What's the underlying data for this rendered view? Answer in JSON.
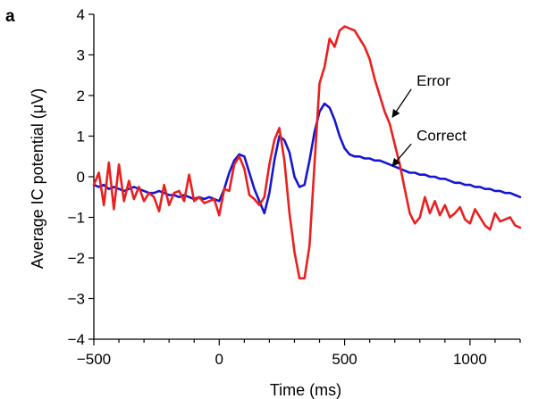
{
  "panel_label": "a",
  "chart_data": {
    "type": "line",
    "title": "",
    "xlabel": "Time (ms)",
    "ylabel": "Average IC potential (μV)",
    "xlim": [
      -500,
      1200
    ],
    "ylim": [
      -4,
      4
    ],
    "x_ticks": [
      -500,
      0,
      500,
      1000
    ],
    "x_tick_labels": [
      "−500",
      "0",
      "500",
      "1000"
    ],
    "y_ticks": [
      4,
      3,
      2,
      1,
      0,
      -1,
      -2,
      -3,
      -4
    ],
    "y_tick_labels": [
      "4",
      "3",
      "2",
      "1",
      "0",
      "−1",
      "−2",
      "−3",
      "−4"
    ],
    "grid": false,
    "legend": "none",
    "annotations": [
      {
        "text": "Error",
        "series": "error",
        "target": [
          680,
          1.4
        ],
        "label_at": [
          780,
          2.2
        ]
      },
      {
        "text": "Correct",
        "series": "correct",
        "target": [
          680,
          0.2
        ],
        "label_at": [
          780,
          0.85
        ]
      }
    ],
    "series": [
      {
        "id": "error",
        "color": "#e8201f",
        "x": [
          -500,
          -480,
          -460,
          -440,
          -420,
          -400,
          -380,
          -360,
          -340,
          -320,
          -300,
          -280,
          -260,
          -240,
          -220,
          -200,
          -180,
          -160,
          -140,
          -120,
          -100,
          -80,
          -60,
          -40,
          -20,
          0,
          20,
          40,
          60,
          80,
          100,
          120,
          140,
          160,
          180,
          200,
          220,
          240,
          260,
          280,
          300,
          320,
          340,
          360,
          380,
          400,
          420,
          440,
          460,
          480,
          500,
          520,
          540,
          560,
          580,
          600,
          620,
          640,
          660,
          680,
          700,
          720,
          740,
          760,
          780,
          800,
          820,
          840,
          860,
          880,
          900,
          920,
          940,
          960,
          980,
          1000,
          1020,
          1040,
          1060,
          1080,
          1100,
          1120,
          1140,
          1160,
          1180,
          1200
        ],
        "y": [
          -0.2,
          0.1,
          -0.7,
          0.35,
          -0.8,
          0.3,
          -0.6,
          -0.1,
          -0.55,
          -0.25,
          -0.6,
          -0.4,
          -0.5,
          -0.85,
          -0.2,
          -0.7,
          -0.4,
          -0.35,
          -0.6,
          0.05,
          -0.6,
          -0.5,
          -0.65,
          -0.6,
          -0.55,
          -0.95,
          -0.3,
          -0.35,
          0.3,
          0.5,
          0.2,
          -0.45,
          -0.55,
          -0.7,
          -0.5,
          0.3,
          0.9,
          1.2,
          0.4,
          -0.9,
          -1.85,
          -2.5,
          -2.5,
          -1.7,
          0.3,
          2.3,
          2.7,
          3.4,
          3.2,
          3.6,
          3.7,
          3.65,
          3.6,
          3.4,
          3.2,
          2.9,
          2.4,
          2.0,
          1.6,
          1.3,
          0.8,
          0.3,
          -0.3,
          -0.9,
          -1.15,
          -1.0,
          -0.5,
          -0.9,
          -0.6,
          -0.95,
          -0.7,
          -1.0,
          -0.9,
          -0.75,
          -1.05,
          -1.15,
          -0.8,
          -1.0,
          -1.2,
          -1.3,
          -0.9,
          -1.1,
          -1.05,
          -1.0,
          -1.2,
          -1.25
        ]
      },
      {
        "id": "correct",
        "color": "#1616d2",
        "x": [
          -500,
          -480,
          -460,
          -440,
          -420,
          -400,
          -380,
          -360,
          -340,
          -320,
          -300,
          -280,
          -260,
          -240,
          -220,
          -200,
          -180,
          -160,
          -140,
          -120,
          -100,
          -80,
          -60,
          -40,
          -20,
          0,
          20,
          40,
          60,
          80,
          100,
          120,
          140,
          160,
          180,
          200,
          220,
          240,
          260,
          280,
          300,
          320,
          340,
          360,
          380,
          400,
          420,
          440,
          460,
          480,
          500,
          520,
          540,
          560,
          580,
          600,
          620,
          640,
          660,
          680,
          700,
          720,
          740,
          760,
          780,
          800,
          820,
          840,
          860,
          880,
          900,
          920,
          940,
          960,
          980,
          1000,
          1020,
          1040,
          1060,
          1080,
          1100,
          1120,
          1140,
          1160,
          1180,
          1200
        ],
        "y": [
          -0.2,
          -0.25,
          -0.2,
          -0.3,
          -0.25,
          -0.3,
          -0.35,
          -0.3,
          -0.25,
          -0.3,
          -0.35,
          -0.4,
          -0.4,
          -0.35,
          -0.4,
          -0.45,
          -0.45,
          -0.5,
          -0.45,
          -0.5,
          -0.55,
          -0.5,
          -0.55,
          -0.5,
          -0.55,
          -0.6,
          -0.3,
          0.1,
          0.4,
          0.55,
          0.5,
          0.1,
          -0.3,
          -0.6,
          -0.9,
          -0.4,
          0.4,
          1.0,
          0.9,
          0.6,
          0.0,
          -0.25,
          -0.2,
          0.4,
          1.1,
          1.6,
          1.8,
          1.7,
          1.4,
          1.0,
          0.7,
          0.55,
          0.5,
          0.5,
          0.45,
          0.45,
          0.4,
          0.4,
          0.35,
          0.3,
          0.25,
          0.2,
          0.15,
          0.1,
          0.1,
          0.05,
          0.05,
          0.0,
          0.0,
          -0.05,
          -0.05,
          -0.1,
          -0.15,
          -0.15,
          -0.2,
          -0.2,
          -0.25,
          -0.25,
          -0.3,
          -0.3,
          -0.35,
          -0.35,
          -0.4,
          -0.4,
          -0.45,
          -0.5
        ]
      }
    ]
  }
}
